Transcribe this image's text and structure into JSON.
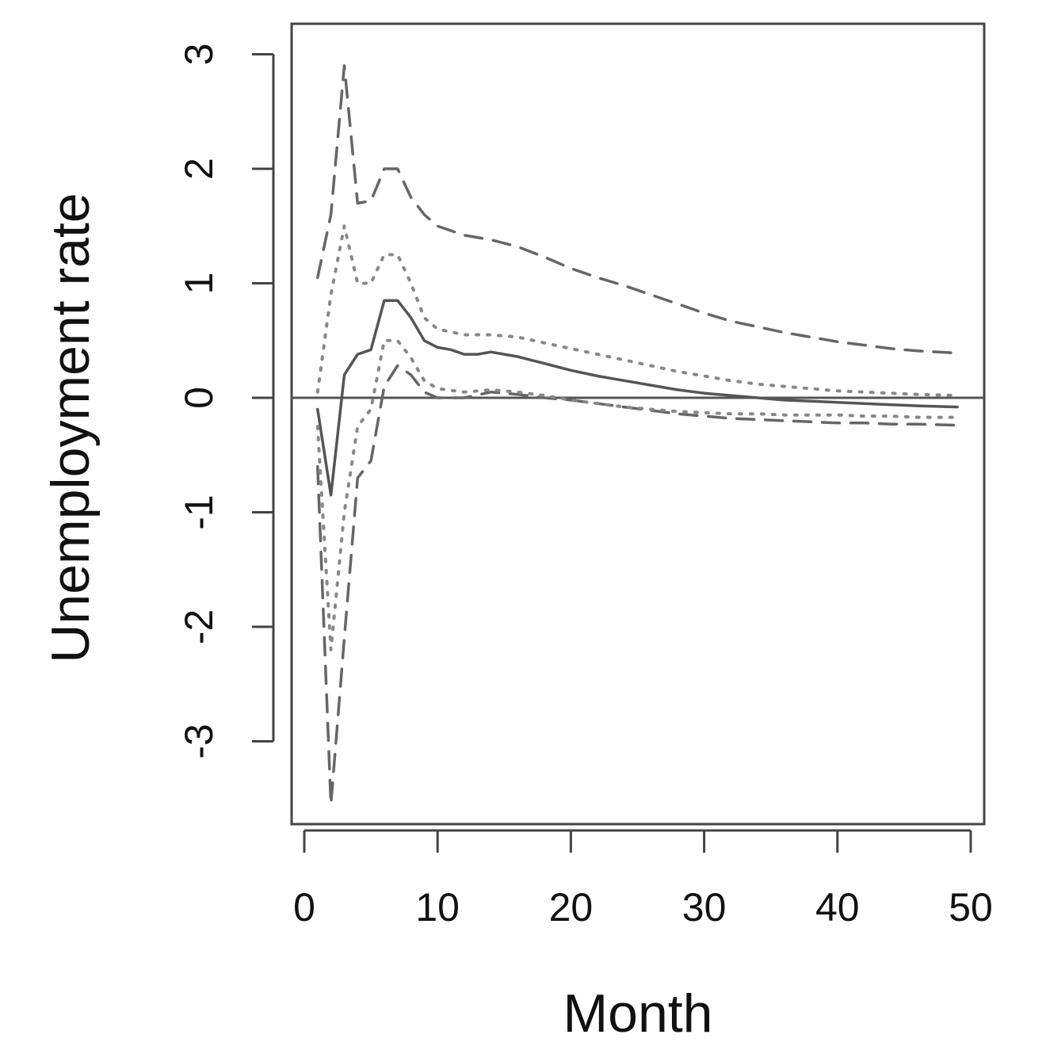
{
  "chart_data": {
    "type": "line",
    "title": "",
    "xlabel": "Month",
    "ylabel": "Unemployment rate",
    "xlim": [
      0,
      50
    ],
    "ylim": [
      -3.5,
      3.3
    ],
    "xticks": [
      0,
      10,
      20,
      30,
      40,
      50
    ],
    "yticks": [
      -3,
      -2,
      -1,
      0,
      1,
      2,
      3
    ],
    "grid": false,
    "legend": "none",
    "hline": 0,
    "series": [
      {
        "style": "solid",
        "color": "#555555",
        "x": [
          1,
          2,
          3,
          4,
          5,
          6,
          7,
          8,
          9,
          10,
          11,
          12,
          13,
          14,
          15,
          16,
          17,
          18,
          19,
          20,
          22,
          24,
          26,
          28,
          30,
          32,
          34,
          36,
          38,
          40,
          42,
          44,
          46,
          49
        ],
        "y": [
          -0.1,
          -0.85,
          0.2,
          0.38,
          0.42,
          0.85,
          0.85,
          0.7,
          0.5,
          0.44,
          0.42,
          0.38,
          0.38,
          0.4,
          0.38,
          0.36,
          0.33,
          0.3,
          0.27,
          0.24,
          0.19,
          0.15,
          0.11,
          0.07,
          0.04,
          0.02,
          0.0,
          -0.02,
          -0.03,
          -0.04,
          -0.05,
          -0.06,
          -0.07,
          -0.08
        ]
      },
      {
        "style": "dashed",
        "color": "#666666",
        "x": [
          1,
          2,
          3,
          4,
          5,
          6,
          7,
          8,
          9,
          10,
          12,
          14,
          16,
          18,
          20,
          22,
          24,
          26,
          28,
          30,
          32,
          34,
          36,
          38,
          40,
          42,
          44,
          46,
          49
        ],
        "y": [
          1.05,
          1.6,
          2.9,
          1.7,
          1.72,
          2.0,
          2.0,
          1.75,
          1.6,
          1.5,
          1.42,
          1.38,
          1.32,
          1.23,
          1.13,
          1.05,
          0.98,
          0.9,
          0.82,
          0.74,
          0.67,
          0.62,
          0.57,
          0.53,
          0.49,
          0.46,
          0.43,
          0.41,
          0.39
        ]
      },
      {
        "style": "dashed",
        "color": "#666666",
        "x": [
          1,
          2,
          3,
          4,
          5,
          6,
          7,
          8,
          9,
          10,
          12,
          14,
          16,
          18,
          20,
          22,
          24,
          26,
          28,
          30,
          32,
          34,
          36,
          38,
          40,
          42,
          44,
          46,
          49
        ],
        "y": [
          -0.6,
          -3.55,
          -2.1,
          -0.7,
          -0.55,
          0.1,
          0.28,
          0.2,
          0.05,
          0.0,
          0.0,
          0.05,
          0.03,
          0.0,
          -0.02,
          -0.05,
          -0.08,
          -0.11,
          -0.14,
          -0.16,
          -0.18,
          -0.19,
          -0.2,
          -0.21,
          -0.22,
          -0.22,
          -0.23,
          -0.23,
          -0.24
        ]
      },
      {
        "style": "dotted",
        "color": "#888888",
        "x": [
          1,
          2,
          3,
          4,
          5,
          6,
          7,
          8,
          9,
          10,
          12,
          14,
          16,
          18,
          20,
          22,
          24,
          26,
          28,
          30,
          32,
          34,
          36,
          38,
          40,
          42,
          44,
          46,
          49
        ],
        "y": [
          0.05,
          0.9,
          1.5,
          1.0,
          1.0,
          1.25,
          1.25,
          1.0,
          0.7,
          0.6,
          0.55,
          0.55,
          0.53,
          0.48,
          0.43,
          0.38,
          0.33,
          0.28,
          0.23,
          0.19,
          0.15,
          0.12,
          0.1,
          0.08,
          0.06,
          0.05,
          0.04,
          0.03,
          0.02
        ]
      },
      {
        "style": "dotted",
        "color": "#888888",
        "x": [
          1,
          2,
          3,
          4,
          5,
          6,
          7,
          8,
          9,
          10,
          12,
          14,
          16,
          18,
          20,
          22,
          24,
          26,
          28,
          30,
          32,
          34,
          36,
          38,
          40,
          42,
          44,
          46,
          49
        ],
        "y": [
          -0.25,
          -2.2,
          -1.0,
          -0.25,
          -0.1,
          0.5,
          0.5,
          0.35,
          0.15,
          0.08,
          0.05,
          0.07,
          0.05,
          0.02,
          -0.02,
          -0.05,
          -0.08,
          -0.1,
          -0.12,
          -0.13,
          -0.14,
          -0.14,
          -0.15,
          -0.15,
          -0.15,
          -0.16,
          -0.16,
          -0.17,
          -0.17
        ]
      }
    ]
  }
}
